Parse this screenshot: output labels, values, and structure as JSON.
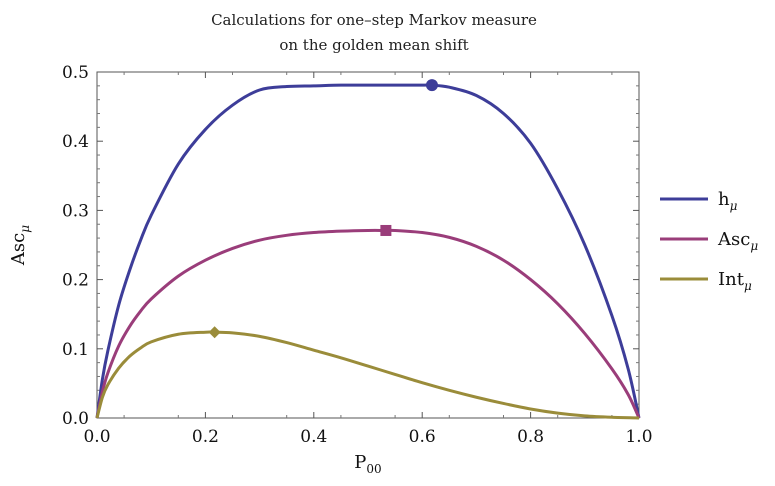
{
  "chart_data": {
    "type": "line",
    "title": [
      "Calculations for one–step Markov measure",
      "on the golden mean shift"
    ],
    "xlabel": {
      "base": "P",
      "sub": "00"
    },
    "ylabel": {
      "base": "Asc",
      "sub": "μ"
    },
    "xlim": [
      0,
      1
    ],
    "ylim": [
      0,
      0.5
    ],
    "xticks": [
      0.0,
      0.2,
      0.4,
      0.6,
      0.8,
      1.0
    ],
    "xtick_labels": [
      "0.0",
      "0.2",
      "0.4",
      "0.6",
      "0.8",
      "1.0"
    ],
    "yticks": [
      0.0,
      0.1,
      0.2,
      0.3,
      0.4,
      0.5
    ],
    "ytick_labels": [
      "0.0",
      "0.1",
      "0.2",
      "0.3",
      "0.4",
      "0.5"
    ],
    "legend_position": "right",
    "grid": false,
    "series": [
      {
        "name": "h",
        "name_sub": "μ",
        "color": "#3d3d99",
        "marker": "circle",
        "x": [
          0,
          0.01,
          0.02,
          0.04,
          0.06,
          0.08,
          0.1,
          0.15,
          0.2,
          0.25,
          0.3,
          0.35,
          0.4,
          0.45,
          0.5,
          0.55,
          0.6,
          0.618,
          0.65,
          0.7,
          0.75,
          0.8,
          0.85,
          0.9,
          0.95,
          0.98,
          1
        ],
        "y": [
          0,
          0.056,
          0.097,
          0.163,
          0.213,
          0.256,
          0.293,
          0.367,
          0.417,
          0.452,
          0.474,
          0.479,
          0.48,
          0.481,
          0.481,
          0.481,
          0.481,
          0.481,
          0.478,
          0.466,
          0.44,
          0.397,
          0.331,
          0.25,
          0.148,
          0.071,
          0
        ]
      },
      {
        "name": "Asc",
        "name_sub": "μ",
        "color": "#9a3d7a",
        "marker": "square",
        "x": [
          0,
          0.01,
          0.02,
          0.04,
          0.06,
          0.08,
          0.1,
          0.15,
          0.2,
          0.25,
          0.3,
          0.35,
          0.4,
          0.45,
          0.5,
          0.533,
          0.55,
          0.6,
          0.65,
          0.7,
          0.75,
          0.8,
          0.85,
          0.9,
          0.95,
          0.98,
          1
        ],
        "y": [
          0,
          0.038,
          0.065,
          0.104,
          0.132,
          0.154,
          0.172,
          0.205,
          0.228,
          0.245,
          0.257,
          0.264,
          0.268,
          0.27,
          0.271,
          0.271,
          0.271,
          0.268,
          0.261,
          0.248,
          0.228,
          0.2,
          0.165,
          0.122,
          0.071,
          0.034,
          0
        ]
      },
      {
        "name": "Int",
        "name_sub": "μ",
        "color": "#9a8c3a",
        "marker": "diamond",
        "x": [
          0,
          0.01,
          0.02,
          0.04,
          0.06,
          0.08,
          0.1,
          0.15,
          0.2,
          0.217,
          0.25,
          0.3,
          0.35,
          0.4,
          0.45,
          0.5,
          0.55,
          0.6,
          0.65,
          0.7,
          0.75,
          0.8,
          0.85,
          0.9,
          0.95,
          1
        ],
        "y": [
          0,
          0.03,
          0.048,
          0.072,
          0.089,
          0.101,
          0.11,
          0.121,
          0.124,
          0.124,
          0.123,
          0.118,
          0.109,
          0.098,
          0.087,
          0.075,
          0.063,
          0.051,
          0.04,
          0.03,
          0.021,
          0.013,
          0.007,
          0.003,
          0.001,
          0
        ]
      }
    ],
    "markers": [
      {
        "series": "h",
        "x": 0.618,
        "y": 0.481
      },
      {
        "series": "Asc",
        "x": 0.533,
        "y": 0.271
      },
      {
        "series": "Int",
        "x": 0.217,
        "y": 0.124
      }
    ]
  }
}
